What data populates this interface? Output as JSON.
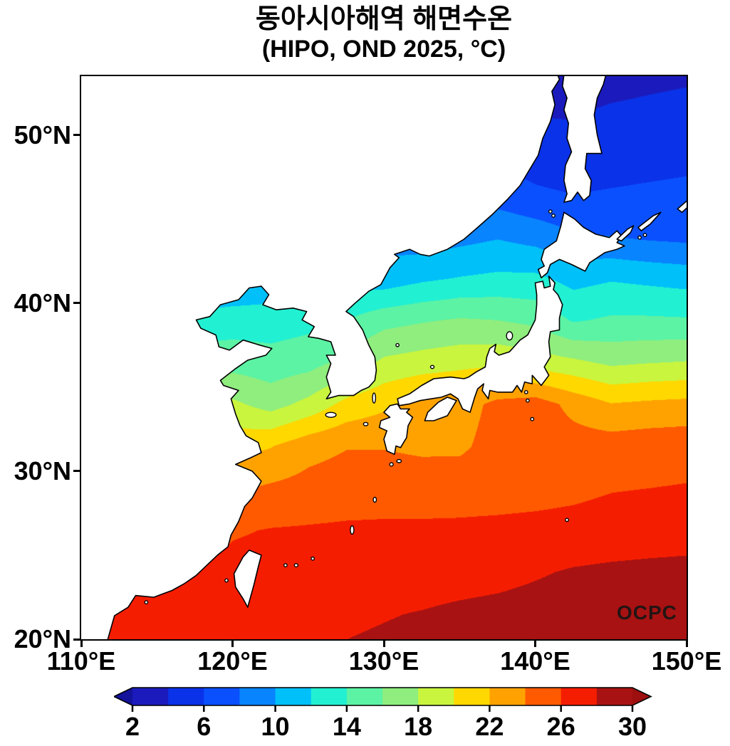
{
  "title": {
    "line1": "동아시아해역 해면수온",
    "line2": "(HIPO, OND 2025, °C)"
  },
  "watermark": "OCPC",
  "axes": {
    "lon_range": [
      110,
      150
    ],
    "lat_range": [
      20,
      53.5
    ],
    "lat_ticks": [
      {
        "label": "50°N",
        "value": 50
      },
      {
        "label": "40°N",
        "value": 40
      },
      {
        "label": "30°N",
        "value": 30
      },
      {
        "label": "20°N",
        "value": 20
      }
    ],
    "lon_ticks": [
      {
        "label": "110°E",
        "value": 110
      },
      {
        "label": "120°E",
        "value": 120
      },
      {
        "label": "130°E",
        "value": 130
      },
      {
        "label": "140°E",
        "value": 140
      },
      {
        "label": "150°E",
        "value": 150
      }
    ]
  },
  "colorbar": {
    "range": [
      2,
      30
    ],
    "segment_step": 2,
    "tick_values": [
      2,
      6,
      10,
      14,
      18,
      22,
      26,
      30
    ],
    "tick_labels": [
      "2",
      "6",
      "10",
      "14",
      "18",
      "22",
      "26",
      "30"
    ]
  },
  "palette": {
    "below_color": "#12129b",
    "above_color": "#9e0f0f",
    "levels": [
      2,
      4,
      6,
      8,
      10,
      12,
      14,
      16,
      18,
      20,
      22,
      24,
      26,
      28,
      30
    ],
    "segment_colors": [
      "#1b1bbd",
      "#0a32e8",
      "#0a50ff",
      "#0884ff",
      "#00c0fa",
      "#22f0d2",
      "#5cf3a4",
      "#8fee7e",
      "#c9f53e",
      "#ffd800",
      "#ffa200",
      "#ff5a00",
      "#f51d00",
      "#a81212"
    ]
  },
  "land_color": "#ffffff",
  "coast_color": "#000000",
  "chart_data": {
    "type": "heatmap",
    "title": "동아시아해역 해면수온 (HIPO, OND 2025, °C)",
    "units": "°C",
    "variable": "sea surface temperature",
    "contour_interval": 2,
    "colorbar_range": [
      2,
      30
    ],
    "lons": [
      110,
      112.5,
      115,
      117.5,
      120,
      122.5,
      125,
      127.5,
      130,
      132.5,
      135,
      137.5,
      140,
      142.5,
      145,
      147.5,
      150
    ],
    "lats": [
      54,
      51.5,
      49,
      46.5,
      44,
      41.5,
      39,
      36.5,
      34,
      31.5,
      29,
      26.5,
      24,
      21.5,
      19
    ],
    "sst": [
      [
        1.0,
        1.0,
        1.0,
        1.2,
        1.5,
        1.8,
        2.0,
        2.2,
        2.5,
        2.8,
        3.0,
        3.2,
        3.2,
        2.8,
        3.0,
        3.3,
        3.5
      ],
      [
        1.5,
        1.5,
        1.6,
        1.8,
        2.0,
        2.3,
        2.6,
        3.0,
        3.3,
        3.6,
        3.9,
        4.0,
        3.8,
        3.8,
        4.2,
        4.4,
        4.6
      ],
      [
        2.5,
        2.5,
        2.6,
        2.8,
        3.0,
        3.3,
        3.6,
        4.0,
        4.4,
        4.8,
        5.2,
        5.4,
        5.0,
        4.6,
        4.8,
        5.0,
        5.2
      ],
      [
        4.0,
        4.0,
        4.2,
        4.5,
        4.8,
        5.0,
        5.5,
        6.0,
        6.5,
        7.0,
        7.2,
        7.0,
        6.3,
        6.0,
        6.2,
        6.4,
        6.6
      ],
      [
        6.0,
        6.2,
        6.5,
        6.8,
        7.0,
        7.5,
        8.5,
        9.0,
        9.2,
        8.8,
        9.3,
        9.8,
        9.2,
        8.2,
        8.0,
        7.6,
        7.4
      ],
      [
        9.0,
        9.0,
        9.2,
        9.5,
        10.0,
        10.5,
        10.8,
        11.0,
        10.8,
        11.6,
        12.1,
        12.4,
        12.4,
        11.3,
        11.8,
        11.5,
        11.2
      ],
      [
        12.0,
        12.3,
        12.6,
        12.8,
        13.0,
        13.0,
        13.4,
        14.0,
        15.3,
        15.8,
        16.2,
        16.0,
        15.5,
        13.8,
        14.3,
        14.3,
        14.2
      ],
      [
        14.0,
        14.3,
        14.6,
        15.0,
        15.2,
        14.8,
        15.2,
        16.6,
        18.4,
        18.9,
        19.3,
        19.5,
        19.0,
        18.4,
        17.6,
        17.9,
        18.1
      ],
      [
        16.0,
        16.5,
        17.0,
        17.5,
        18.4,
        17.2,
        18.6,
        20.6,
        21.6,
        22.7,
        23.0,
        24.6,
        25.0,
        23.4,
        22.1,
        22.4,
        22.6
      ],
      [
        19.0,
        19.5,
        20.0,
        20.5,
        21.2,
        21.9,
        23.3,
        23.9,
        23.9,
        23.6,
        23.6,
        24.9,
        25.1,
        24.9,
        25.0,
        25.2,
        25.3
      ],
      [
        22.0,
        22.5,
        23.0,
        23.3,
        23.7,
        24.3,
        24.7,
        25.0,
        25.2,
        25.2,
        25.3,
        25.3,
        25.4,
        25.6,
        25.9,
        26.0,
        26.1
      ],
      [
        24.0,
        24.2,
        24.5,
        25.0,
        25.8,
        26.1,
        26.2,
        26.3,
        26.3,
        26.3,
        26.3,
        26.4,
        26.5,
        26.6,
        26.8,
        27.0,
        27.1
      ],
      [
        25.3,
        25.6,
        25.9,
        26.2,
        26.6,
        26.8,
        26.9,
        27.0,
        27.0,
        27.1,
        27.2,
        27.4,
        27.8,
        28.2,
        28.4,
        28.5,
        28.6
      ],
      [
        25.8,
        26.3,
        26.6,
        26.9,
        27.1,
        27.3,
        27.5,
        27.7,
        27.9,
        28.1,
        28.4,
        28.6,
        28.8,
        29.0,
        29.1,
        29.2,
        29.3
      ],
      [
        26.2,
        26.7,
        27.0,
        27.3,
        27.5,
        27.7,
        28.0,
        28.2,
        28.4,
        28.6,
        28.9,
        29.1,
        29.3,
        29.5,
        29.6,
        29.7,
        29.8
      ]
    ]
  }
}
